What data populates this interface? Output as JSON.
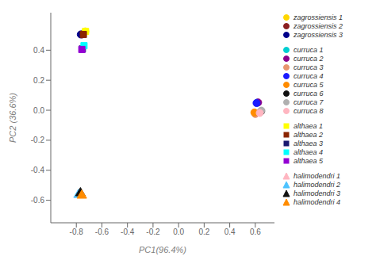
{
  "chart_data": {
    "type": "scatter",
    "xlabel": "PC1(96.4%)",
    "ylabel": "PC2 (36.6%)",
    "xlim": [
      -1.0,
      0.75
    ],
    "ylim": [
      -0.75,
      0.65
    ],
    "xticks": [
      -0.8,
      -0.6,
      -0.4,
      -0.2,
      {
        "value": 0.0,
        "label": "0.0"
      },
      0.2,
      0.4,
      0.6
    ],
    "yticks": [
      -0.6,
      -0.4,
      -0.2,
      {
        "value": 0.0,
        "label": "0.0"
      },
      0.2,
      0.4
    ],
    "series": [
      {
        "name": "zagrossiensis 1",
        "color": "#FFD700",
        "marker": "circle",
        "x": [
          -0.73
        ],
        "y": [
          0.525
        ]
      },
      {
        "name": "zagrossiensis 2",
        "color": "#8B2020",
        "marker": "circle",
        "x": [
          -0.755
        ],
        "y": [
          0.505
        ]
      },
      {
        "name": "zagrossiensis 3",
        "color": "#00008B",
        "marker": "circle",
        "x": [
          -0.765
        ],
        "y": [
          0.505
        ]
      },
      {
        "name": "curruca 1",
        "color": "#00CED1",
        "marker": "circle",
        "x": [
          0.615
        ],
        "y": [
          0.05
        ]
      },
      {
        "name": "curruca 2",
        "color": "#8B008B",
        "marker": "circle",
        "x": [
          0.622
        ],
        "y": [
          0.052
        ]
      },
      {
        "name": "curruca 3",
        "color": "#E8956D",
        "marker": "circle",
        "x": [
          0.6
        ],
        "y": [
          -0.025
        ]
      },
      {
        "name": "curruca 4",
        "color": "#1a1aff",
        "marker": "circle",
        "x": [
          0.61
        ],
        "y": [
          0.048
        ]
      },
      {
        "name": "curruca 5",
        "color": "#FF8C00",
        "marker": "circle",
        "x": [
          0.593
        ],
        "y": [
          -0.015
        ]
      },
      {
        "name": "curruca 6",
        "color": "#111111",
        "marker": "circle",
        "x": [
          0.645
        ],
        "y": [
          -0.008
        ]
      },
      {
        "name": "curruca 7",
        "color": "#b0b0b0",
        "marker": "circle",
        "x": [
          0.648
        ],
        "y": [
          -0.003
        ]
      },
      {
        "name": "curruca 8",
        "color": "#ffb6c1",
        "marker": "circle",
        "x": [
          0.635
        ],
        "y": [
          -0.018
        ]
      },
      {
        "name": "althaea 1",
        "color": "#FFFF00",
        "marker": "square",
        "x": [
          -0.728
        ],
        "y": [
          0.525
        ]
      },
      {
        "name": "althaea 2",
        "color": "#8B2500",
        "marker": "square",
        "x": [
          -0.745
        ],
        "y": [
          0.505
        ]
      },
      {
        "name": "althaea 3",
        "color": "#191970",
        "marker": "square",
        "x": [
          -0.753
        ],
        "y": [
          0.408
        ]
      },
      {
        "name": "althaea 4",
        "color": "#00FFFF",
        "marker": "square",
        "x": [
          -0.74
        ],
        "y": [
          0.43
        ]
      },
      {
        "name": "althaea 5",
        "color": "#9400D3",
        "marker": "square",
        "x": [
          -0.757
        ],
        "y": [
          0.405
        ]
      },
      {
        "name": "halimodendri 1",
        "color": "#ffb6c1",
        "marker": "triangle",
        "x": [
          -0.778
        ],
        "y": [
          -0.562
        ]
      },
      {
        "name": "halimodendri 2",
        "color": "#4dc3ff",
        "marker": "triangle",
        "x": [
          -0.783
        ],
        "y": [
          -0.563
        ]
      },
      {
        "name": "halimodendri 3",
        "color": "#111111",
        "marker": "triangle",
        "x": [
          -0.768
        ],
        "y": [
          -0.552
        ]
      },
      {
        "name": "halimodendri 4",
        "color": "#FF8C00",
        "marker": "triangle",
        "x": [
          -0.757
        ],
        "y": [
          -0.568
        ]
      }
    ]
  }
}
